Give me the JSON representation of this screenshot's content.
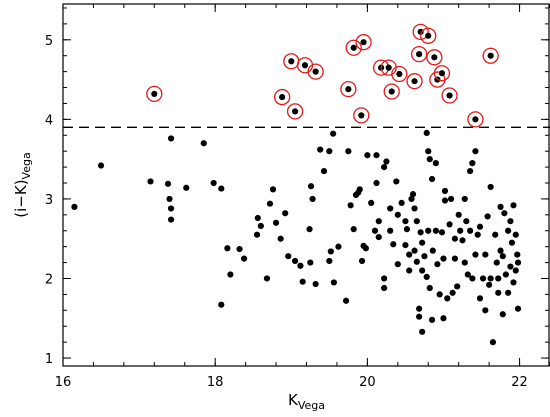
{
  "chart_data": {
    "type": "scatter",
    "title": "",
    "xlabel": {
      "main": "K",
      "sub": "Vega"
    },
    "ylabel": {
      "main": "(i−K)",
      "sub": "Vega"
    },
    "xlim": [
      16,
      22.4
    ],
    "ylim": [
      0.9,
      5.45
    ],
    "grid": false,
    "legend": "none",
    "x_ticks": [
      16,
      18,
      20,
      22
    ],
    "x_tick_labels": [
      "16",
      "18",
      "20",
      "22"
    ],
    "y_ticks": [
      1,
      2,
      3,
      4,
      5
    ],
    "y_tick_labels": [
      "1",
      "2",
      "3",
      "4",
      "5"
    ],
    "threshold_line": {
      "y": 3.9,
      "style": "dashed"
    },
    "colors": {
      "points": "#000000",
      "circles": "#e41a1c",
      "axes": "#000000"
    },
    "series": [
      {
        "marker": "filled-dot",
        "points": [
          [
            16.15,
            2.9
          ],
          [
            16.5,
            3.42
          ],
          [
            17.15,
            3.22
          ],
          [
            17.38,
            3.19
          ],
          [
            17.4,
            3.0
          ],
          [
            17.42,
            2.88
          ],
          [
            17.42,
            2.74
          ],
          [
            17.42,
            3.76
          ],
          [
            17.62,
            3.14
          ],
          [
            17.85,
            3.7
          ],
          [
            17.98,
            3.2
          ],
          [
            18.08,
            3.13
          ],
          [
            18.08,
            1.67
          ],
          [
            18.16,
            2.38
          ],
          [
            18.2,
            2.05
          ],
          [
            18.32,
            2.37
          ],
          [
            18.38,
            2.25
          ],
          [
            18.55,
            2.55
          ],
          [
            18.56,
            2.76
          ],
          [
            18.6,
            2.66
          ],
          [
            18.68,
            2.0
          ],
          [
            18.72,
            2.94
          ],
          [
            18.76,
            3.12
          ],
          [
            18.8,
            2.7
          ],
          [
            18.86,
            2.5
          ],
          [
            18.92,
            2.82
          ],
          [
            18.96,
            2.28
          ],
          [
            19.05,
            2.22
          ],
          [
            19.12,
            2.16
          ],
          [
            19.15,
            1.96
          ],
          [
            19.24,
            2.62
          ],
          [
            19.26,
            3.16
          ],
          [
            19.28,
            3.0
          ],
          [
            19.25,
            2.2
          ],
          [
            19.32,
            1.93
          ],
          [
            19.38,
            3.62
          ],
          [
            19.43,
            3.35
          ],
          [
            19.5,
            3.6
          ],
          [
            19.55,
            3.82
          ],
          [
            19.5,
            2.22
          ],
          [
            19.52,
            2.34
          ],
          [
            19.56,
            1.95
          ],
          [
            19.62,
            2.4
          ],
          [
            19.72,
            1.72
          ],
          [
            19.75,
            3.6
          ],
          [
            19.78,
            2.92
          ],
          [
            19.82,
            2.62
          ],
          [
            19.85,
            3.05
          ],
          [
            19.88,
            3.08
          ],
          [
            19.9,
            3.12
          ],
          [
            19.95,
            2.41
          ],
          [
            19.98,
            2.38
          ],
          [
            19.93,
            2.22
          ],
          [
            20.0,
            3.55
          ],
          [
            20.05,
            2.95
          ],
          [
            20.1,
            2.6
          ],
          [
            20.12,
            3.55
          ],
          [
            20.12,
            3.2
          ],
          [
            20.15,
            2.72
          ],
          [
            20.15,
            2.52
          ],
          [
            20.22,
            3.4
          ],
          [
            20.22,
            2.0
          ],
          [
            20.22,
            1.88
          ],
          [
            20.25,
            3.47
          ],
          [
            20.3,
            2.88
          ],
          [
            20.3,
            2.6
          ],
          [
            20.34,
            2.43
          ],
          [
            20.38,
            3.22
          ],
          [
            20.4,
            2.8
          ],
          [
            20.4,
            2.18
          ],
          [
            20.45,
            2.95
          ],
          [
            20.5,
            2.72
          ],
          [
            20.5,
            2.42
          ],
          [
            20.52,
            2.62
          ],
          [
            20.55,
            2.3
          ],
          [
            20.55,
            2.1
          ],
          [
            20.58,
            3.0
          ],
          [
            20.6,
            3.06
          ],
          [
            20.62,
            2.88
          ],
          [
            20.62,
            2.35
          ],
          [
            20.65,
            2.72
          ],
          [
            20.65,
            2.21
          ],
          [
            20.68,
            1.52
          ],
          [
            20.68,
            1.62
          ],
          [
            20.7,
            2.58
          ],
          [
            20.72,
            2.45
          ],
          [
            20.72,
            2.1
          ],
          [
            20.75,
            2.28
          ],
          [
            20.72,
            1.33
          ],
          [
            20.78,
            2.02
          ],
          [
            20.78,
            3.83
          ],
          [
            20.8,
            3.6
          ],
          [
            20.8,
            2.6
          ],
          [
            20.82,
            3.5
          ],
          [
            20.82,
            1.88
          ],
          [
            20.85,
            3.25
          ],
          [
            20.85,
            1.48
          ],
          [
            20.86,
            2.35
          ],
          [
            20.9,
            3.45
          ],
          [
            20.9,
            2.6
          ],
          [
            20.92,
            2.18
          ],
          [
            20.95,
            1.8
          ],
          [
            20.98,
            2.58
          ],
          [
            21.0,
            1.5
          ],
          [
            21.0,
            2.25
          ],
          [
            21.02,
            2.98
          ],
          [
            21.02,
            3.1
          ],
          [
            21.05,
            1.75
          ],
          [
            21.08,
            2.68
          ],
          [
            21.1,
            3.0
          ],
          [
            21.12,
            1.82
          ],
          [
            21.15,
            2.5
          ],
          [
            21.15,
            2.25
          ],
          [
            21.18,
            1.9
          ],
          [
            21.2,
            2.8
          ],
          [
            21.22,
            2.6
          ],
          [
            21.25,
            2.48
          ],
          [
            21.28,
            2.2
          ],
          [
            21.28,
            3.0
          ],
          [
            21.3,
            2.72
          ],
          [
            21.32,
            2.05
          ],
          [
            21.35,
            2.6
          ],
          [
            21.35,
            3.35
          ],
          [
            21.38,
            2.0
          ],
          [
            21.38,
            3.45
          ],
          [
            21.42,
            3.6
          ],
          [
            21.42,
            2.3
          ],
          [
            21.45,
            2.55
          ],
          [
            21.48,
            2.65
          ],
          [
            21.48,
            1.75
          ],
          [
            21.52,
            2.0
          ],
          [
            21.55,
            2.3
          ],
          [
            21.55,
            1.6
          ],
          [
            21.58,
            2.78
          ],
          [
            21.6,
            1.92
          ],
          [
            21.62,
            2.0
          ],
          [
            21.62,
            3.15
          ],
          [
            21.65,
            1.2
          ],
          [
            21.68,
            2.55
          ],
          [
            21.7,
            2.2
          ],
          [
            21.72,
            2.0
          ],
          [
            21.72,
            1.82
          ],
          [
            21.75,
            2.35
          ],
          [
            21.75,
            2.9
          ],
          [
            21.78,
            1.55
          ],
          [
            21.78,
            2.28
          ],
          [
            21.8,
            2.82
          ],
          [
            21.82,
            2.05
          ],
          [
            21.85,
            2.6
          ],
          [
            21.85,
            1.82
          ],
          [
            21.88,
            2.15
          ],
          [
            21.9,
            2.45
          ],
          [
            21.92,
            1.95
          ],
          [
            21.95,
            2.55
          ],
          [
            21.98,
            1.62
          ],
          [
            21.98,
            2.2
          ],
          [
            21.88,
            2.72
          ],
          [
            21.92,
            2.92
          ],
          [
            21.95,
            2.1
          ],
          [
            21.97,
            2.3
          ]
        ]
      },
      {
        "marker": "dot-in-red-circle",
        "points": [
          [
            17.2,
            4.32
          ],
          [
            18.88,
            4.28
          ],
          [
            19.0,
            4.73
          ],
          [
            19.05,
            4.1
          ],
          [
            19.18,
            4.68
          ],
          [
            19.32,
            4.6
          ],
          [
            19.75,
            4.38
          ],
          [
            19.82,
            4.9
          ],
          [
            19.95,
            4.97
          ],
          [
            19.92,
            4.05
          ],
          [
            20.18,
            4.65
          ],
          [
            20.28,
            4.65
          ],
          [
            20.32,
            4.35
          ],
          [
            20.42,
            4.57
          ],
          [
            20.62,
            4.48
          ],
          [
            20.68,
            4.82
          ],
          [
            20.7,
            5.1
          ],
          [
            20.8,
            5.05
          ],
          [
            20.88,
            4.78
          ],
          [
            20.92,
            4.5
          ],
          [
            20.98,
            4.58
          ],
          [
            21.08,
            4.3
          ],
          [
            21.42,
            4.0
          ],
          [
            21.62,
            4.8
          ]
        ]
      }
    ]
  }
}
